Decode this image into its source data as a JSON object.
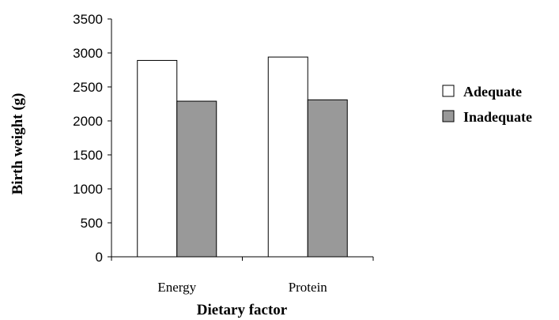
{
  "chart_data": {
    "type": "bar",
    "categories": [
      "Energy",
      "Protein"
    ],
    "series": [
      {
        "name": "Adequate",
        "values": [
          2890,
          2940
        ],
        "color": "#ffffff"
      },
      {
        "name": "Inadequate",
        "values": [
          2290,
          2310
        ],
        "color": "#999999"
      }
    ],
    "xlabel": "Dietary factor",
    "ylabel": "Birth weight (g)",
    "ylim": [
      0,
      3500
    ],
    "yticks": [
      0,
      500,
      1000,
      1500,
      2000,
      2500,
      3000,
      3500
    ],
    "grid": false,
    "legend_position": "right"
  }
}
